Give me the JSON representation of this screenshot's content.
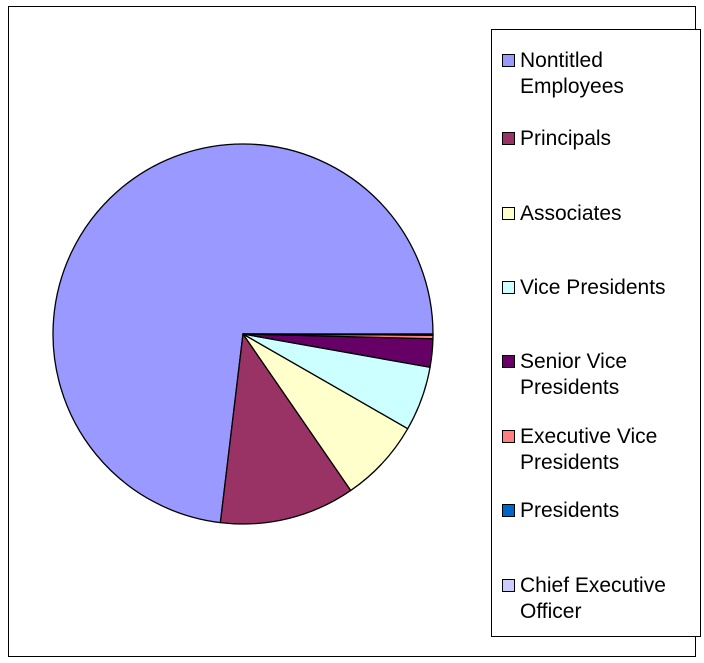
{
  "chart_data": {
    "type": "pie",
    "title": "",
    "legend_position": "right",
    "start_angle_deg": 0,
    "direction": "counterclockwise",
    "slices": [
      {
        "label": "Nontitled Employees",
        "value": 73.1,
        "color": "#9999ff"
      },
      {
        "label": "Principals",
        "value": 11.5,
        "color": "#993366"
      },
      {
        "label": "Associates",
        "value": 7.1,
        "color": "#ffffcc"
      },
      {
        "label": "Vice Presidents",
        "value": 5.5,
        "color": "#ccffff"
      },
      {
        "label": "Senior Vice Presidents",
        "value": 2.4,
        "color": "#660066"
      },
      {
        "label": "Executive Vice Presidents",
        "value": 0.3,
        "color": "#ff8080"
      },
      {
        "label": "Presidents",
        "value": 0.05,
        "color": "#0066cc"
      },
      {
        "label": "Chief Executive Officer",
        "value": 0.05,
        "color": "#ccccff"
      }
    ]
  }
}
